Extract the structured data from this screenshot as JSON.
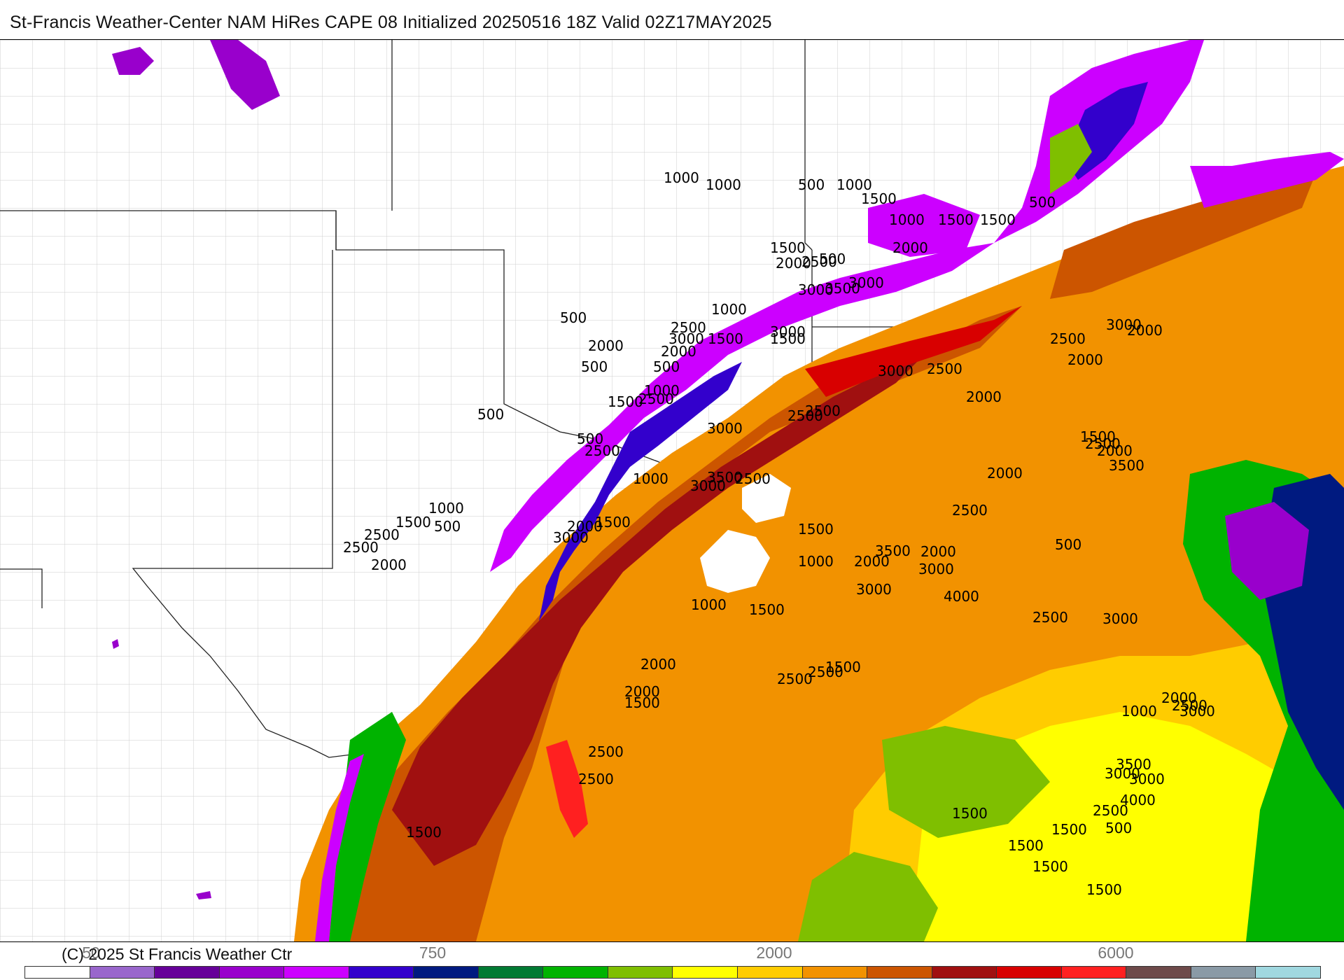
{
  "title": "St-Francis Weather-Center NAM HiRes CAPE  08 Initialized 20250516 18Z Valid 02Z17MAY2025",
  "footer": {
    "copyright": "(C) 2025 St Francis Weather Ctr",
    "ticks": [
      "50",
      "750",
      "2000",
      "6000"
    ]
  },
  "colorbar": {
    "colors": [
      "#ffffff",
      "#9966cc",
      "#660099",
      "#9900cc",
      "#cc00ff",
      "#3300cc",
      "#001a80",
      "#007a33",
      "#00b300",
      "#7fbf00",
      "#ffff00",
      "#ffcc00",
      "#f29200",
      "#cc5500",
      "#a01010",
      "#d80000",
      "#ff2020",
      "#6e4a4a",
      "#8a9aa6",
      "#a0d8e0"
    ]
  },
  "contour_labels": [
    "500",
    "1000",
    "1000",
    "500",
    "1000",
    "1500",
    "1000",
    "1500",
    "500",
    "1500",
    "2000",
    "1500",
    "2000",
    "2500",
    "500",
    "3000",
    "3500",
    "3000",
    "1000",
    "2500",
    "3000",
    "1500",
    "2000",
    "500",
    "1000",
    "2500",
    "1500",
    "3000",
    "2000",
    "500",
    "1500",
    "2500",
    "2500",
    "3000",
    "3500",
    "500",
    "2500",
    "500",
    "2500",
    "3000",
    "1000",
    "2000",
    "3000",
    "1500",
    "1000",
    "1500",
    "2500",
    "500",
    "2000",
    "2500",
    "3000",
    "2500",
    "2000",
    "2500",
    "2000",
    "2000",
    "500",
    "3000",
    "2000",
    "1500",
    "2500",
    "1000",
    "1500",
    "2500",
    "2000",
    "3500",
    "3000",
    "2500",
    "4000",
    "3000",
    "2000",
    "3500",
    "2000",
    "3000",
    "1500",
    "2500",
    "2500",
    "2000",
    "1000",
    "1500",
    "2000",
    "1500",
    "2500",
    "2500",
    "1500",
    "1500",
    "1500",
    "1500",
    "1500",
    "1500",
    "500",
    "3000",
    "3000",
    "3500",
    "4000",
    "2500",
    "1000",
    "3000",
    "2500",
    "2000",
    "1500"
  ]
}
